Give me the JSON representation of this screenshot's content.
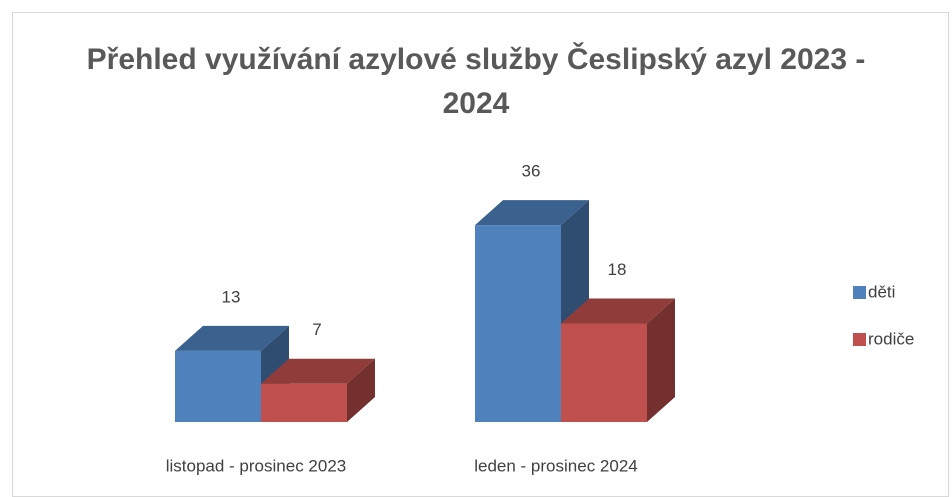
{
  "chart_data": {
    "type": "bar3d",
    "title": "Přehled využívání azylové služby Česlipský azyl 2023 - 2024",
    "categories": [
      "listopad - prosinec 2023",
      "leden - prosinec 2024"
    ],
    "series": [
      {
        "name": "děti",
        "color": "#4f81bd",
        "values": [
          13,
          36
        ]
      },
      {
        "name": "rodiče",
        "color": "#c0504d",
        "values": [
          7,
          18
        ]
      }
    ],
    "legend": "right"
  }
}
